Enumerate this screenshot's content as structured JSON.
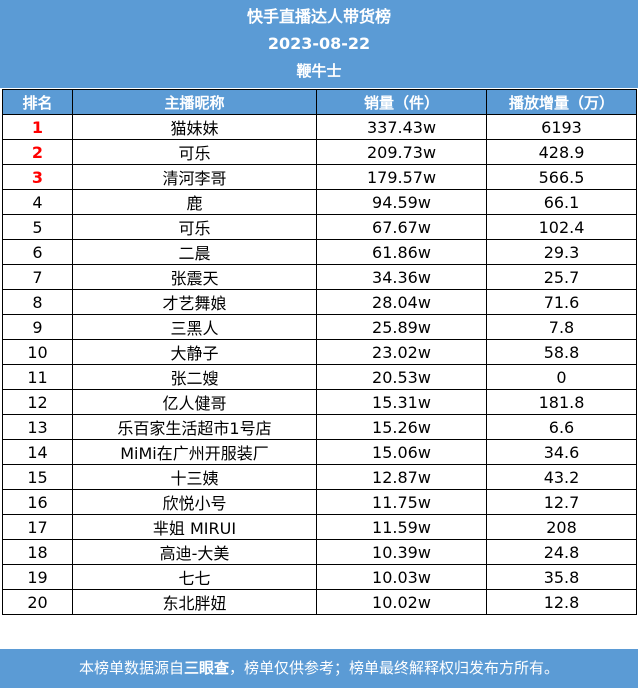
{
  "header": {
    "title": "快手直播达人带货榜",
    "date": "2023-08-22",
    "subtitle": "鞭牛士"
  },
  "table": {
    "columns": [
      "排名",
      "主播昵称",
      "销量（件）",
      "播放增量（万）"
    ],
    "rows": [
      {
        "rank": "1",
        "name": "猫妹妹",
        "sales": "337.43w",
        "views": "6193"
      },
      {
        "rank": "2",
        "name": "可乐",
        "sales": "209.73w",
        "views": "428.9"
      },
      {
        "rank": "3",
        "name": "清河李哥",
        "sales": "179.57w",
        "views": "566.5"
      },
      {
        "rank": "4",
        "name": "鹿",
        "sales": "94.59w",
        "views": "66.1"
      },
      {
        "rank": "5",
        "name": "可乐",
        "sales": "67.67w",
        "views": "102.4"
      },
      {
        "rank": "6",
        "name": "二晨",
        "sales": "61.86w",
        "views": "29.3"
      },
      {
        "rank": "7",
        "name": "张震天",
        "sales": "34.36w",
        "views": "25.7"
      },
      {
        "rank": "8",
        "name": "才艺舞娘",
        "sales": "28.04w",
        "views": "71.6"
      },
      {
        "rank": "9",
        "name": "三黑人",
        "sales": "25.89w",
        "views": "7.8"
      },
      {
        "rank": "10",
        "name": "大静子",
        "sales": "23.02w",
        "views": "58.8"
      },
      {
        "rank": "11",
        "name": "张二嫂",
        "sales": "20.53w",
        "views": "0"
      },
      {
        "rank": "12",
        "name": "亿人健哥",
        "sales": "15.31w",
        "views": "181.8"
      },
      {
        "rank": "13",
        "name": "乐百家生活超市1号店",
        "sales": "15.26w",
        "views": "6.6"
      },
      {
        "rank": "14",
        "name": "MiMi在广州开服装厂",
        "sales": "15.06w",
        "views": "34.6"
      },
      {
        "rank": "15",
        "name": "十三姨",
        "sales": "12.87w",
        "views": "43.2"
      },
      {
        "rank": "16",
        "name": "欣悦小号",
        "sales": "11.75w",
        "views": "12.7"
      },
      {
        "rank": "17",
        "name": "芈姐 MIRUI",
        "sales": "11.59w",
        "views": "208"
      },
      {
        "rank": "18",
        "name": "高迪-大美",
        "sales": "10.39w",
        "views": "24.8"
      },
      {
        "rank": "19",
        "name": "七七",
        "sales": "10.03w",
        "views": "35.8"
      },
      {
        "rank": "20",
        "name": "东北胖妞",
        "sales": "10.02w",
        "views": "12.8"
      }
    ]
  },
  "footer": {
    "prefix": "本榜单数据源自",
    "brand": "三眼查",
    "suffix": "，榜单仅供参考；榜单最终解释权归发布方所有。"
  },
  "colors": {
    "header_bg": "#5b9bd5",
    "top3_rank": "#ff0000"
  }
}
